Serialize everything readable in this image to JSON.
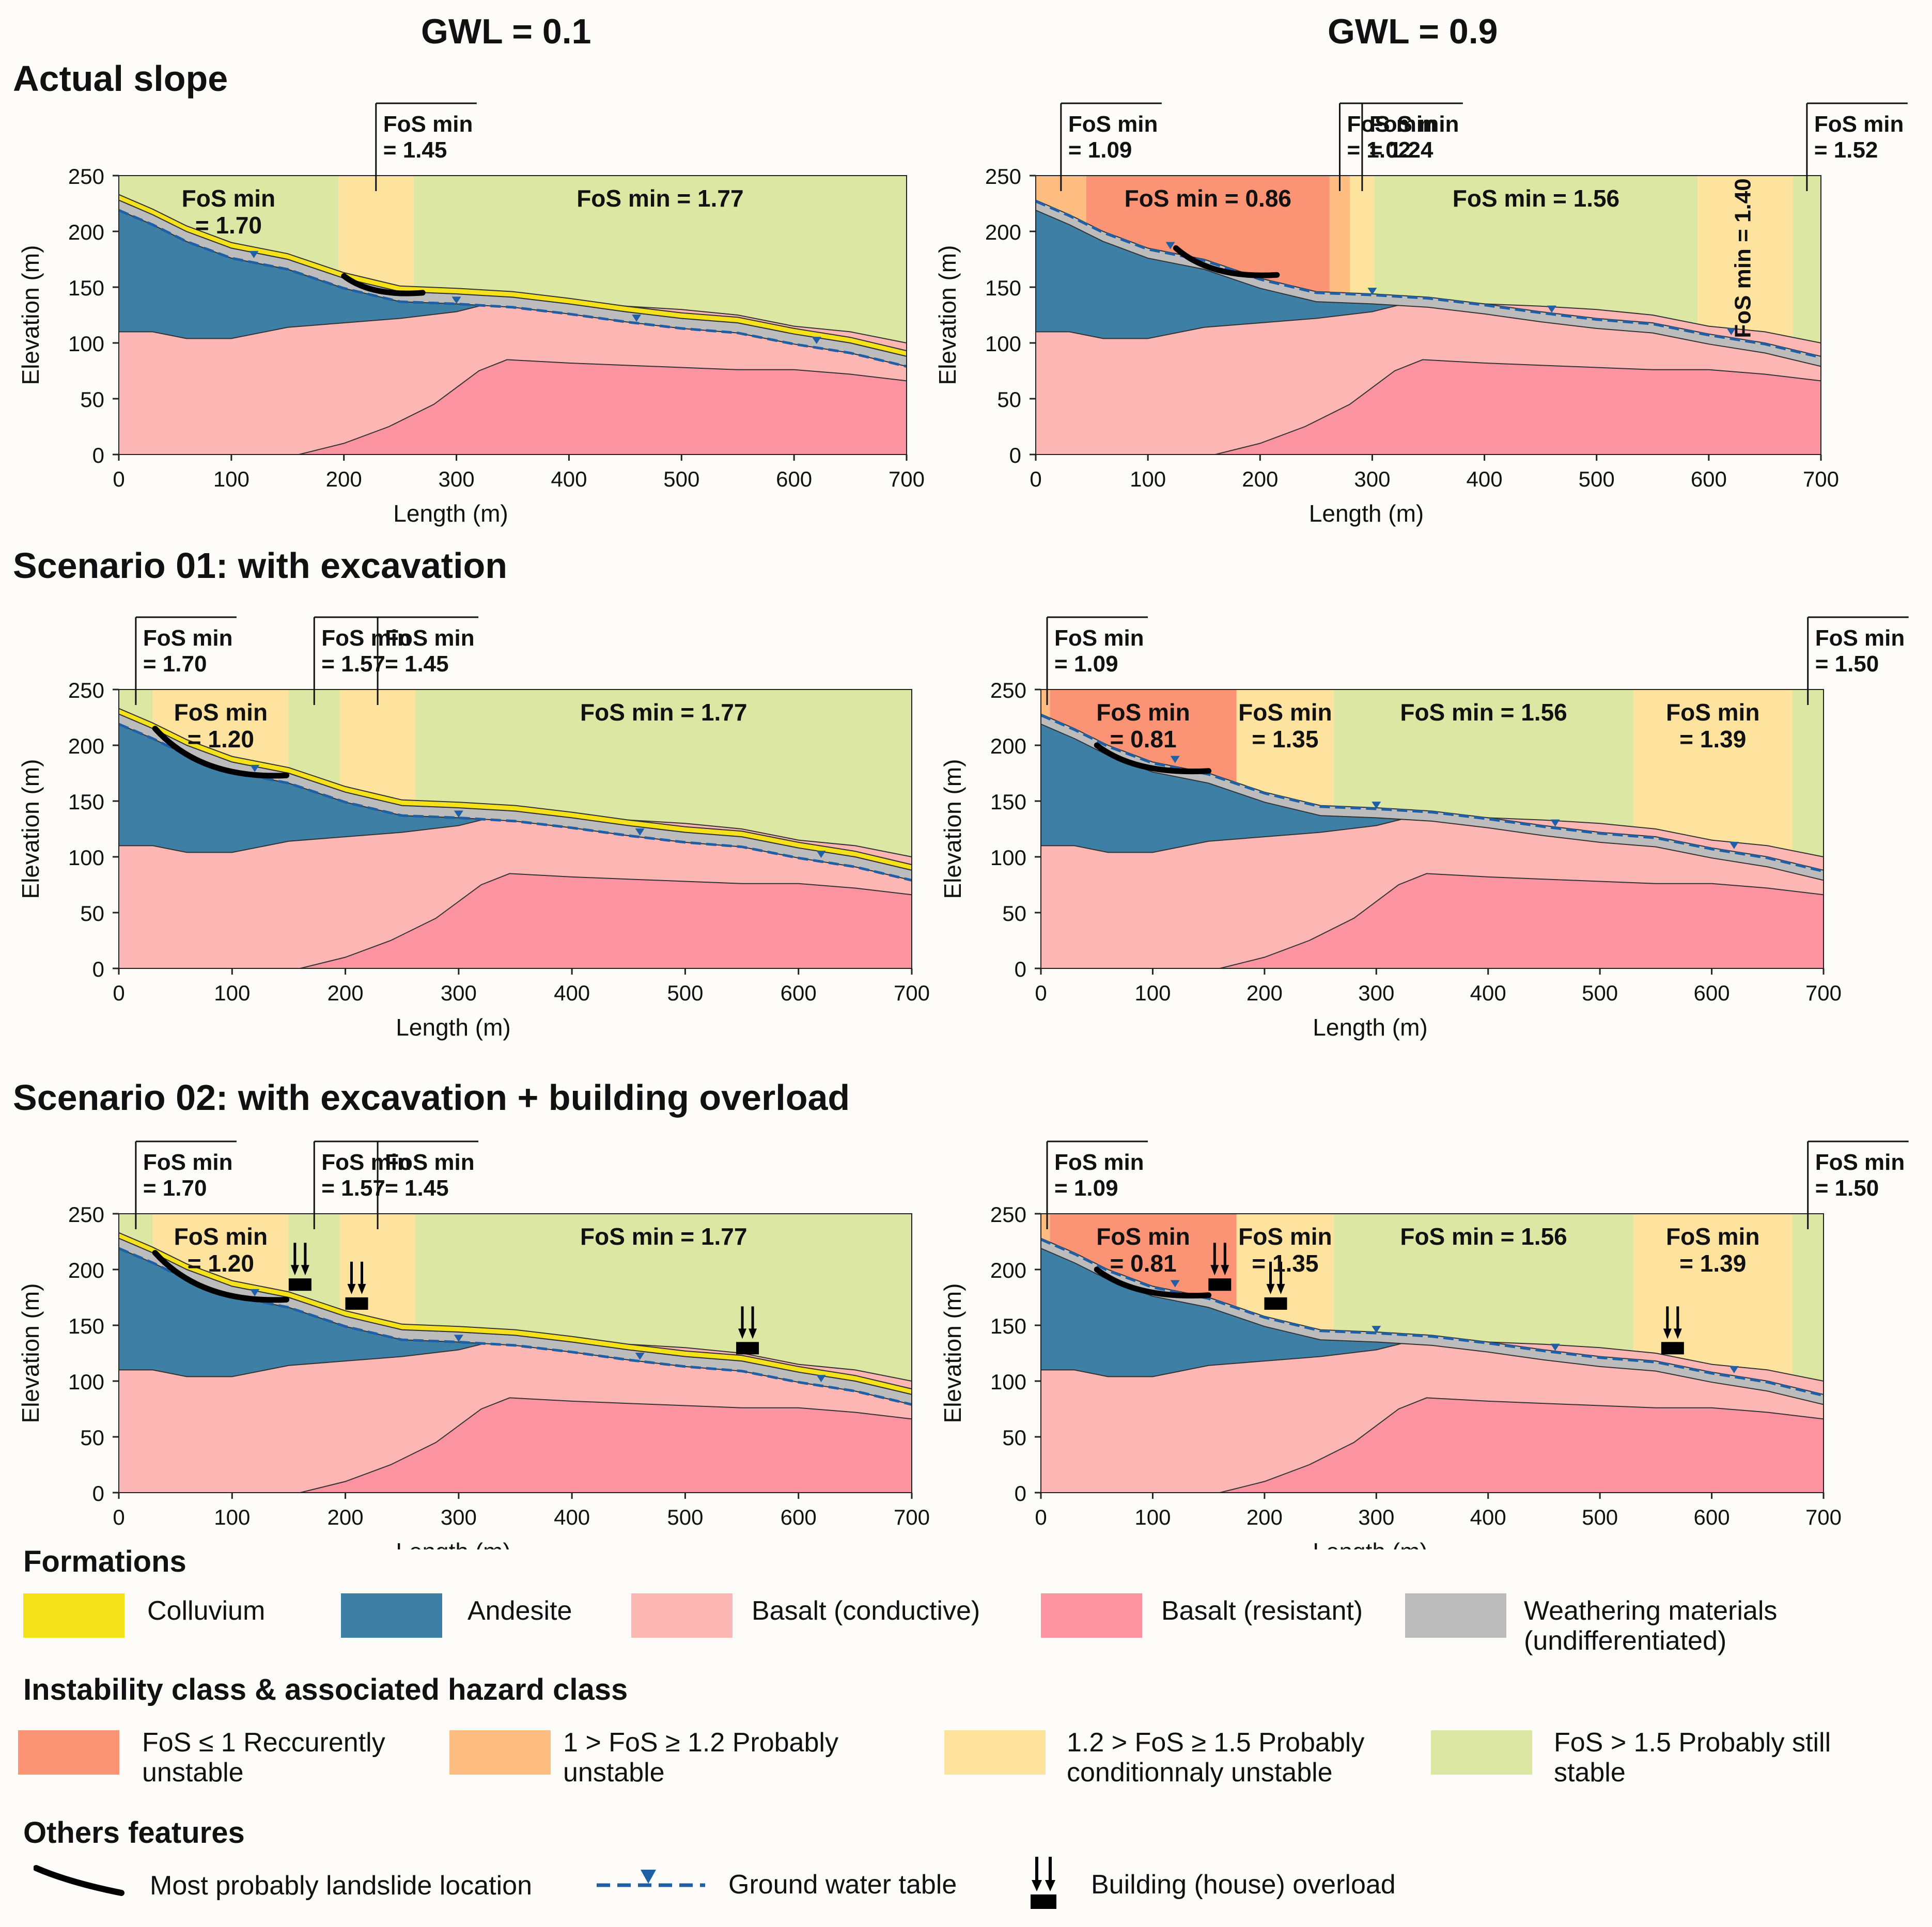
{
  "columns": {
    "left": "GWL = 0.1",
    "right": "GWL = 0.9"
  },
  "axes": {
    "ylabel": "Elevation (m)",
    "xlabel": "Length (m)",
    "yticks": [
      "0",
      "50",
      "100",
      "150",
      "200",
      "250"
    ],
    "xticks": [
      "0",
      "100",
      "200",
      "300",
      "400",
      "500",
      "600",
      "700"
    ]
  },
  "rows": [
    {
      "title": "Actual slope",
      "left": {
        "sectors": [
          {
            "fos": "1.70",
            "class": "stable",
            "x0": 0,
            "x1": 195,
            "label": "inside"
          },
          {
            "fos": "1.45",
            "class": "conditional",
            "x0": 195,
            "x1": 262,
            "label": "flag"
          },
          {
            "fos": "1.77",
            "class": "stable",
            "x0": 262,
            "x1": 700,
            "label": "inside"
          }
        ],
        "landslides": [
          [
            200,
            160,
            270,
            145
          ]
        ],
        "buildings": []
      },
      "right": {
        "sectors": [
          {
            "fos": "1.09",
            "class": "probable",
            "x0": 0,
            "x1": 45,
            "label": "flag"
          },
          {
            "fos": "0.86",
            "class": "recurrent",
            "x0": 45,
            "x1": 262,
            "label": "inside"
          },
          {
            "fos": "1.02",
            "class": "probable",
            "x0": 262,
            "x1": 280,
            "label": "flag"
          },
          {
            "fos": "1.24",
            "class": "conditional",
            "x0": 280,
            "x1": 302,
            "label": "flag"
          },
          {
            "fos": "1.56",
            "class": "stable",
            "x0": 302,
            "x1": 590,
            "label": "inside"
          },
          {
            "fos": "1.40",
            "class": "conditional",
            "x0": 590,
            "x1": 675,
            "label": "vertical"
          },
          {
            "fos": "1.52",
            "class": "stable",
            "x0": 675,
            "x1": 700,
            "label": "flag"
          }
        ],
        "landslides": [
          [
            125,
            185,
            215,
            161
          ]
        ],
        "buildings": []
      }
    },
    {
      "title": "Scenario 01: with excavation",
      "left": {
        "sectors": [
          {
            "fos": "1.70",
            "class": "stable",
            "x0": 0,
            "x1": 30,
            "label": "flag"
          },
          {
            "fos": "1.20",
            "class": "conditional",
            "x0": 30,
            "x1": 150,
            "label": "inside"
          },
          {
            "fos": "1.57",
            "class": "stable",
            "x0": 150,
            "x1": 195,
            "label": "flag"
          },
          {
            "fos": "1.45",
            "class": "conditional",
            "x0": 195,
            "x1": 262,
            "label": "flag"
          },
          {
            "fos": "1.77",
            "class": "stable",
            "x0": 262,
            "x1": 700,
            "label": "inside"
          }
        ],
        "landslides": [
          [
            32,
            215,
            148,
            173
          ]
        ],
        "buildings": []
      },
      "right": {
        "sectors": [
          {
            "fos": "1.09",
            "class": "probable",
            "x0": 0,
            "x1": 8,
            "label": "flag"
          },
          {
            "fos": "0.81",
            "class": "recurrent",
            "x0": 8,
            "x1": 175,
            "label": "inside"
          },
          {
            "fos": "1.35",
            "class": "conditional",
            "x0": 175,
            "x1": 262,
            "label": "inside"
          },
          {
            "fos": "1.56",
            "class": "stable",
            "x0": 262,
            "x1": 530,
            "label": "inside"
          },
          {
            "fos": "1.39",
            "class": "conditional",
            "x0": 530,
            "x1": 672,
            "label": "inside"
          },
          {
            "fos": "1.50",
            "class": "stable",
            "x0": 672,
            "x1": 700,
            "label": "flag"
          }
        ],
        "landslides": [
          [
            50,
            200,
            150,
            177
          ]
        ],
        "buildings": []
      }
    },
    {
      "title": "Scenario 02: with excavation + building overload",
      "left": {
        "sectors": [
          {
            "fos": "1.70",
            "class": "stable",
            "x0": 0,
            "x1": 30,
            "label": "flag"
          },
          {
            "fos": "1.20",
            "class": "conditional",
            "x0": 30,
            "x1": 150,
            "label": "inside"
          },
          {
            "fos": "1.57",
            "class": "stable",
            "x0": 150,
            "x1": 195,
            "label": "flag"
          },
          {
            "fos": "1.45",
            "class": "conditional",
            "x0": 195,
            "x1": 262,
            "label": "flag"
          },
          {
            "fos": "1.77",
            "class": "stable",
            "x0": 262,
            "x1": 700,
            "label": "inside"
          }
        ],
        "landslides": [
          [
            32,
            215,
            148,
            173
          ]
        ],
        "buildings": [
          160,
          210,
          555
        ]
      },
      "right": {
        "sectors": [
          {
            "fos": "1.09",
            "class": "probable",
            "x0": 0,
            "x1": 8,
            "label": "flag"
          },
          {
            "fos": "0.81",
            "class": "recurrent",
            "x0": 8,
            "x1": 175,
            "label": "inside"
          },
          {
            "fos": "1.35",
            "class": "conditional",
            "x0": 175,
            "x1": 262,
            "label": "inside"
          },
          {
            "fos": "1.56",
            "class": "stable",
            "x0": 262,
            "x1": 530,
            "label": "inside"
          },
          {
            "fos": "1.39",
            "class": "conditional",
            "x0": 530,
            "x1": 672,
            "label": "inside"
          },
          {
            "fos": "1.50",
            "class": "stable",
            "x0": 672,
            "x1": 700,
            "label": "flag"
          }
        ],
        "landslides": [
          [
            50,
            200,
            150,
            177
          ]
        ],
        "buildings": [
          160,
          210,
          565
        ]
      }
    }
  ],
  "fos_prefix": "FoS min",
  "fos_eq": "= ",
  "legend": {
    "formations_title": "Formations",
    "formations": [
      {
        "label": "Colluvium",
        "color": "#f5e21a"
      },
      {
        "label": "Andesite",
        "color": "#3e7fa5"
      },
      {
        "label": "Basalt (conductive)",
        "color": "#fcb6b4"
      },
      {
        "label": "Basalt (resistant)",
        "color": "#fb93a0"
      },
      {
        "label": "Weathering materials (undifferentiated)",
        "color": "#bcbcbc"
      }
    ],
    "instability_title": "Instability class & associated hazard class",
    "instability": [
      {
        "label": "FoS ≤ 1 Reccurently unstable",
        "color": "#fb9475"
      },
      {
        "label": "1 > FoS  ≥ 1.2 Probably unstable",
        "color": "#fdbd80"
      },
      {
        "label": "1.2 > FoS  ≥ 1.5 Probably conditionnaly unstable",
        "color": "#fde39d"
      },
      {
        "label": "FoS  > 1.5 Probably still stable",
        "color": "#dce7a4"
      }
    ],
    "others_title": "Others features",
    "others": [
      {
        "label": "Most probably landslide location"
      },
      {
        "label": "Ground water table"
      },
      {
        "label": "Building (house) overload"
      }
    ]
  },
  "colors": {
    "stable": "#dce7a4",
    "conditional": "#fde39d",
    "probable": "#fdbd80",
    "recurrent": "#fb9475",
    "andesite": "#3e7fa5",
    "basalt_conductive": "#fcb6b4",
    "basalt_resistant": "#fb93a0",
    "weathering": "#bcbcbc",
    "colluvium": "#f5e21a",
    "water": "#1f5fa5"
  }
}
